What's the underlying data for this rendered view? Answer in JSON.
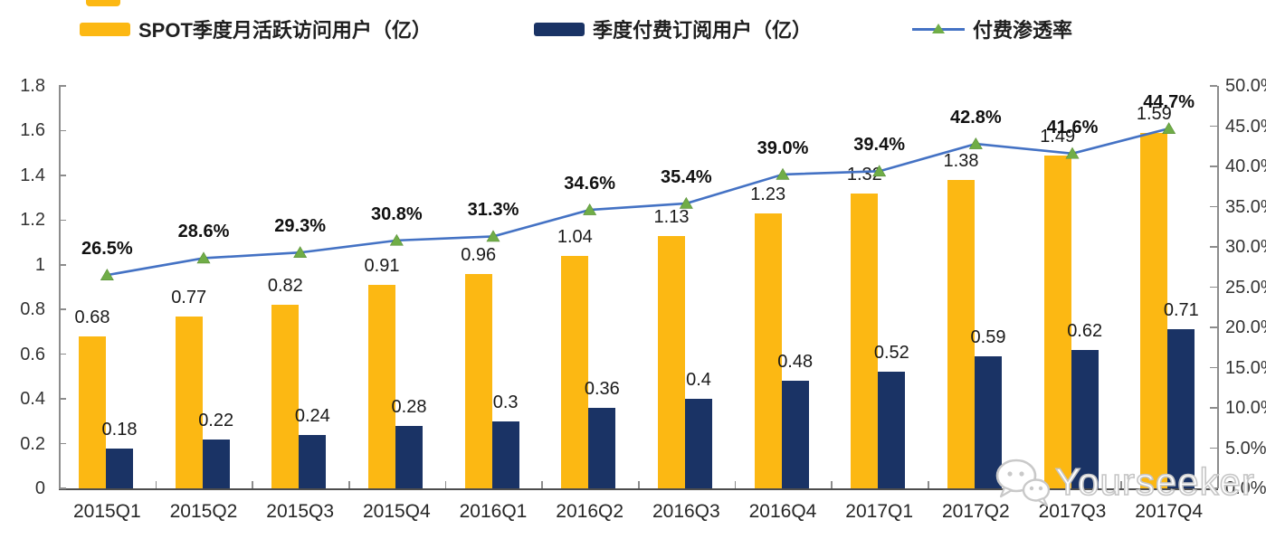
{
  "legend": {
    "items": [
      {
        "label": "SPOT季度月活跃访问用户（亿）",
        "swatch_color": "#FCB813",
        "marker": "bar"
      },
      {
        "label": "季度付费订阅用户（亿）",
        "swatch_color": "#1A3365",
        "marker": "bar"
      },
      {
        "label": "付费渗透率",
        "line_color": "#4472C4",
        "marker_color": "#70AD47",
        "marker": "line-triangle"
      }
    ]
  },
  "watermark": {
    "text": "Yourseeker"
  },
  "chart_data": {
    "type": "bar",
    "subtype": "combo bar + line, dual axis",
    "categories": [
      "2015Q1",
      "2015Q2",
      "2015Q3",
      "2015Q4",
      "2016Q1",
      "2016Q2",
      "2016Q3",
      "2016Q4",
      "2017Q1",
      "2017Q2",
      "2017Q3",
      "2017Q4"
    ],
    "series": [
      {
        "name": "SPOT季度月活跃访问用户（亿）",
        "type": "bar",
        "axis": "left",
        "color": "#FCB813",
        "values": [
          0.68,
          0.77,
          0.82,
          0.91,
          0.96,
          1.04,
          1.13,
          1.23,
          1.32,
          1.38,
          1.49,
          1.59
        ]
      },
      {
        "name": "季度付费订阅用户（亿）",
        "type": "bar",
        "axis": "left",
        "color": "#1A3365",
        "values": [
          0.18,
          0.22,
          0.24,
          0.28,
          0.3,
          0.36,
          0.4,
          0.48,
          0.52,
          0.59,
          0.62,
          0.71
        ]
      },
      {
        "name": "付费渗透率",
        "type": "line",
        "axis": "right",
        "color": "#4472C4",
        "marker": "triangle",
        "marker_color": "#70AD47",
        "values": [
          26.5,
          28.6,
          29.3,
          30.8,
          31.3,
          34.6,
          35.4,
          39.0,
          39.4,
          42.8,
          41.6,
          44.7
        ],
        "labels": [
          "26.5%",
          "28.6%",
          "29.3%",
          "30.8%",
          "31.3%",
          "34.6%",
          "35.4%",
          "39.0%",
          "39.4%",
          "42.8%",
          "41.6%",
          "44.7%"
        ]
      }
    ],
    "left_axis": {
      "min": 0,
      "max": 1.8,
      "step": 0.2,
      "tick_labels": [
        "0",
        "0.2",
        "0.4",
        "0.6",
        "0.8",
        "1",
        "1.2",
        "1.4",
        "1.6",
        "1.8"
      ]
    },
    "right_axis": {
      "min": 0,
      "max": 50,
      "step": 5,
      "tick_labels": [
        "0.0%",
        "5.0%",
        "10.0%",
        "15.0%",
        "20.0%",
        "25.0%",
        "30.0%",
        "35.0%",
        "40.0%",
        "45.0%",
        "50.0%"
      ]
    },
    "grid": false,
    "legend_position": "top",
    "data_labels": true
  }
}
